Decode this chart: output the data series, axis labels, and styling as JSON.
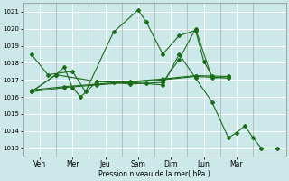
{
  "background_color": "#cce8e8",
  "grid_color": "#ffffff",
  "line_color": "#1a6b1a",
  "xlabel": "Pression niveau de la mer( hPa )",
  "ylim": [
    1012.5,
    1021.5
  ],
  "yticks": [
    1013,
    1014,
    1015,
    1016,
    1017,
    1018,
    1019,
    1020,
    1021
  ],
  "x_day_labels": [
    "Ven",
    "Mer",
    "Jeu",
    "Sam",
    "Dim",
    "Lun",
    "Mar"
  ],
  "x_day_positions": [
    1,
    3,
    5,
    7,
    9,
    11,
    13
  ],
  "x_day_lines": [
    2,
    4,
    6,
    8,
    10,
    12,
    14
  ],
  "xlim": [
    0,
    16
  ],
  "series": [
    {
      "x": [
        0.5,
        1.5,
        3.0,
        3.8,
        5.5,
        7.0,
        7.5,
        8.5,
        9.5,
        10.5,
        11.0,
        11.5
      ],
      "y": [
        1018.5,
        1017.3,
        1017.5,
        1016.3,
        1019.8,
        1021.1,
        1020.4,
        1018.5,
        1019.6,
        1019.9,
        1018.1,
        1017.2
      ]
    },
    {
      "x": [
        0.5,
        2.5,
        4.5,
        6.5,
        8.5,
        10.5,
        12.5
      ],
      "y": [
        1016.3,
        1016.55,
        1016.7,
        1016.85,
        1017.0,
        1017.2,
        1017.1
      ]
    },
    {
      "x": [
        0.5,
        2.5,
        4.5,
        6.5,
        8.5,
        10.5,
        12.5
      ],
      "y": [
        1016.4,
        1016.6,
        1016.75,
        1016.9,
        1017.05,
        1017.25,
        1017.2
      ]
    },
    {
      "x": [
        0.5,
        2.0,
        2.5,
        3.0,
        3.5,
        4.5,
        5.5,
        6.5,
        7.5,
        8.5,
        9.5,
        10.5,
        11.5,
        12.5
      ],
      "y": [
        1016.3,
        1017.3,
        1017.75,
        1016.55,
        1016.0,
        1016.9,
        1016.85,
        1016.75,
        1016.8,
        1016.85,
        1018.2,
        1020.0,
        1017.1,
        1017.2
      ]
    },
    {
      "x": [
        0.5,
        2.0,
        4.5,
        6.5,
        8.5,
        9.5,
        10.5,
        11.5,
        12.5,
        13.0,
        13.5,
        14.0,
        14.5,
        15.5
      ],
      "y": [
        1016.3,
        1017.3,
        1016.9,
        1016.85,
        1016.7,
        1018.5,
        1017.1,
        1015.7,
        1013.6,
        1013.9,
        1014.3,
        1013.6,
        1013.0,
        1013.0
      ]
    }
  ]
}
